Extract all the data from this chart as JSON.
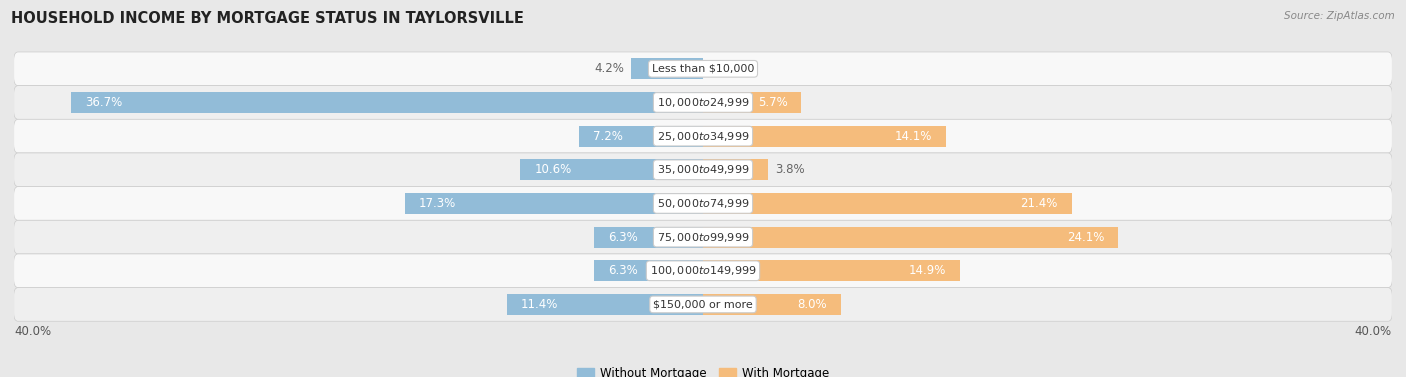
{
  "title": "HOUSEHOLD INCOME BY MORTGAGE STATUS IN TAYLORSVILLE",
  "source": "Source: ZipAtlas.com",
  "categories": [
    "Less than $10,000",
    "$10,000 to $24,999",
    "$25,000 to $34,999",
    "$35,000 to $49,999",
    "$50,000 to $74,999",
    "$75,000 to $99,999",
    "$100,000 to $149,999",
    "$150,000 or more"
  ],
  "without_mortgage": [
    4.2,
    36.7,
    7.2,
    10.6,
    17.3,
    6.3,
    6.3,
    11.4
  ],
  "with_mortgage": [
    0.0,
    5.7,
    14.1,
    3.8,
    21.4,
    24.1,
    14.9,
    8.0
  ],
  "color_without": "#92bcd8",
  "color_with": "#f5bc7c",
  "xlim": 40.0,
  "fig_bg": "#e8e8e8",
  "row_bg_light": "#f2f2f2",
  "row_bg_dark": "#e4e4e4",
  "legend_label_without": "Without Mortgage",
  "legend_label_with": "With Mortgage",
  "bar_height": 0.62,
  "title_fontsize": 10.5,
  "label_fontsize": 8.5,
  "category_fontsize": 8.0,
  "axis_label_fontsize": 8.5,
  "label_color_inside": "#ffffff",
  "label_color_outside": "#666666"
}
